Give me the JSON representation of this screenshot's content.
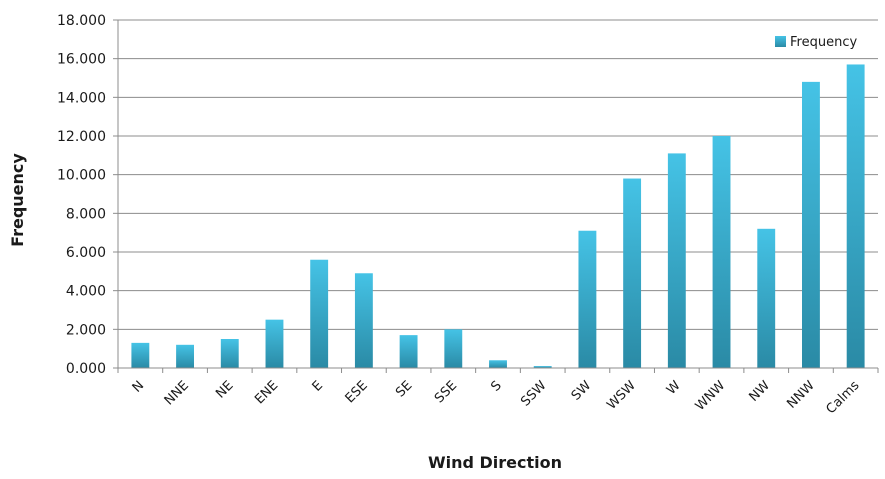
{
  "chart_data": {
    "type": "bar",
    "title": "",
    "xlabel": "Wind Direction",
    "ylabel": "Frequency",
    "ylim": [
      0,
      18
    ],
    "ytick_step": 2,
    "y_tick_labels": [
      "0.000",
      "2.000",
      "4.000",
      "6.000",
      "8.000",
      "10.000",
      "12.000",
      "14.000",
      "16.000",
      "18.000"
    ],
    "grid": true,
    "legend_position": "top-right",
    "categories": [
      "N",
      "NNE",
      "NE",
      "ENE",
      "E",
      "ESE",
      "SE",
      "SSE",
      "S",
      "SSW",
      "SW",
      "WSW",
      "W",
      "WNW",
      "NW",
      "NNW",
      "Calms"
    ],
    "series": [
      {
        "name": "Frequency",
        "color": "#3eaecf",
        "values": [
          1.3,
          1.2,
          1.5,
          2.5,
          5.6,
          4.9,
          1.7,
          2.0,
          0.4,
          0.1,
          7.1,
          9.8,
          11.1,
          12.0,
          7.2,
          14.8,
          15.7
        ]
      }
    ]
  }
}
